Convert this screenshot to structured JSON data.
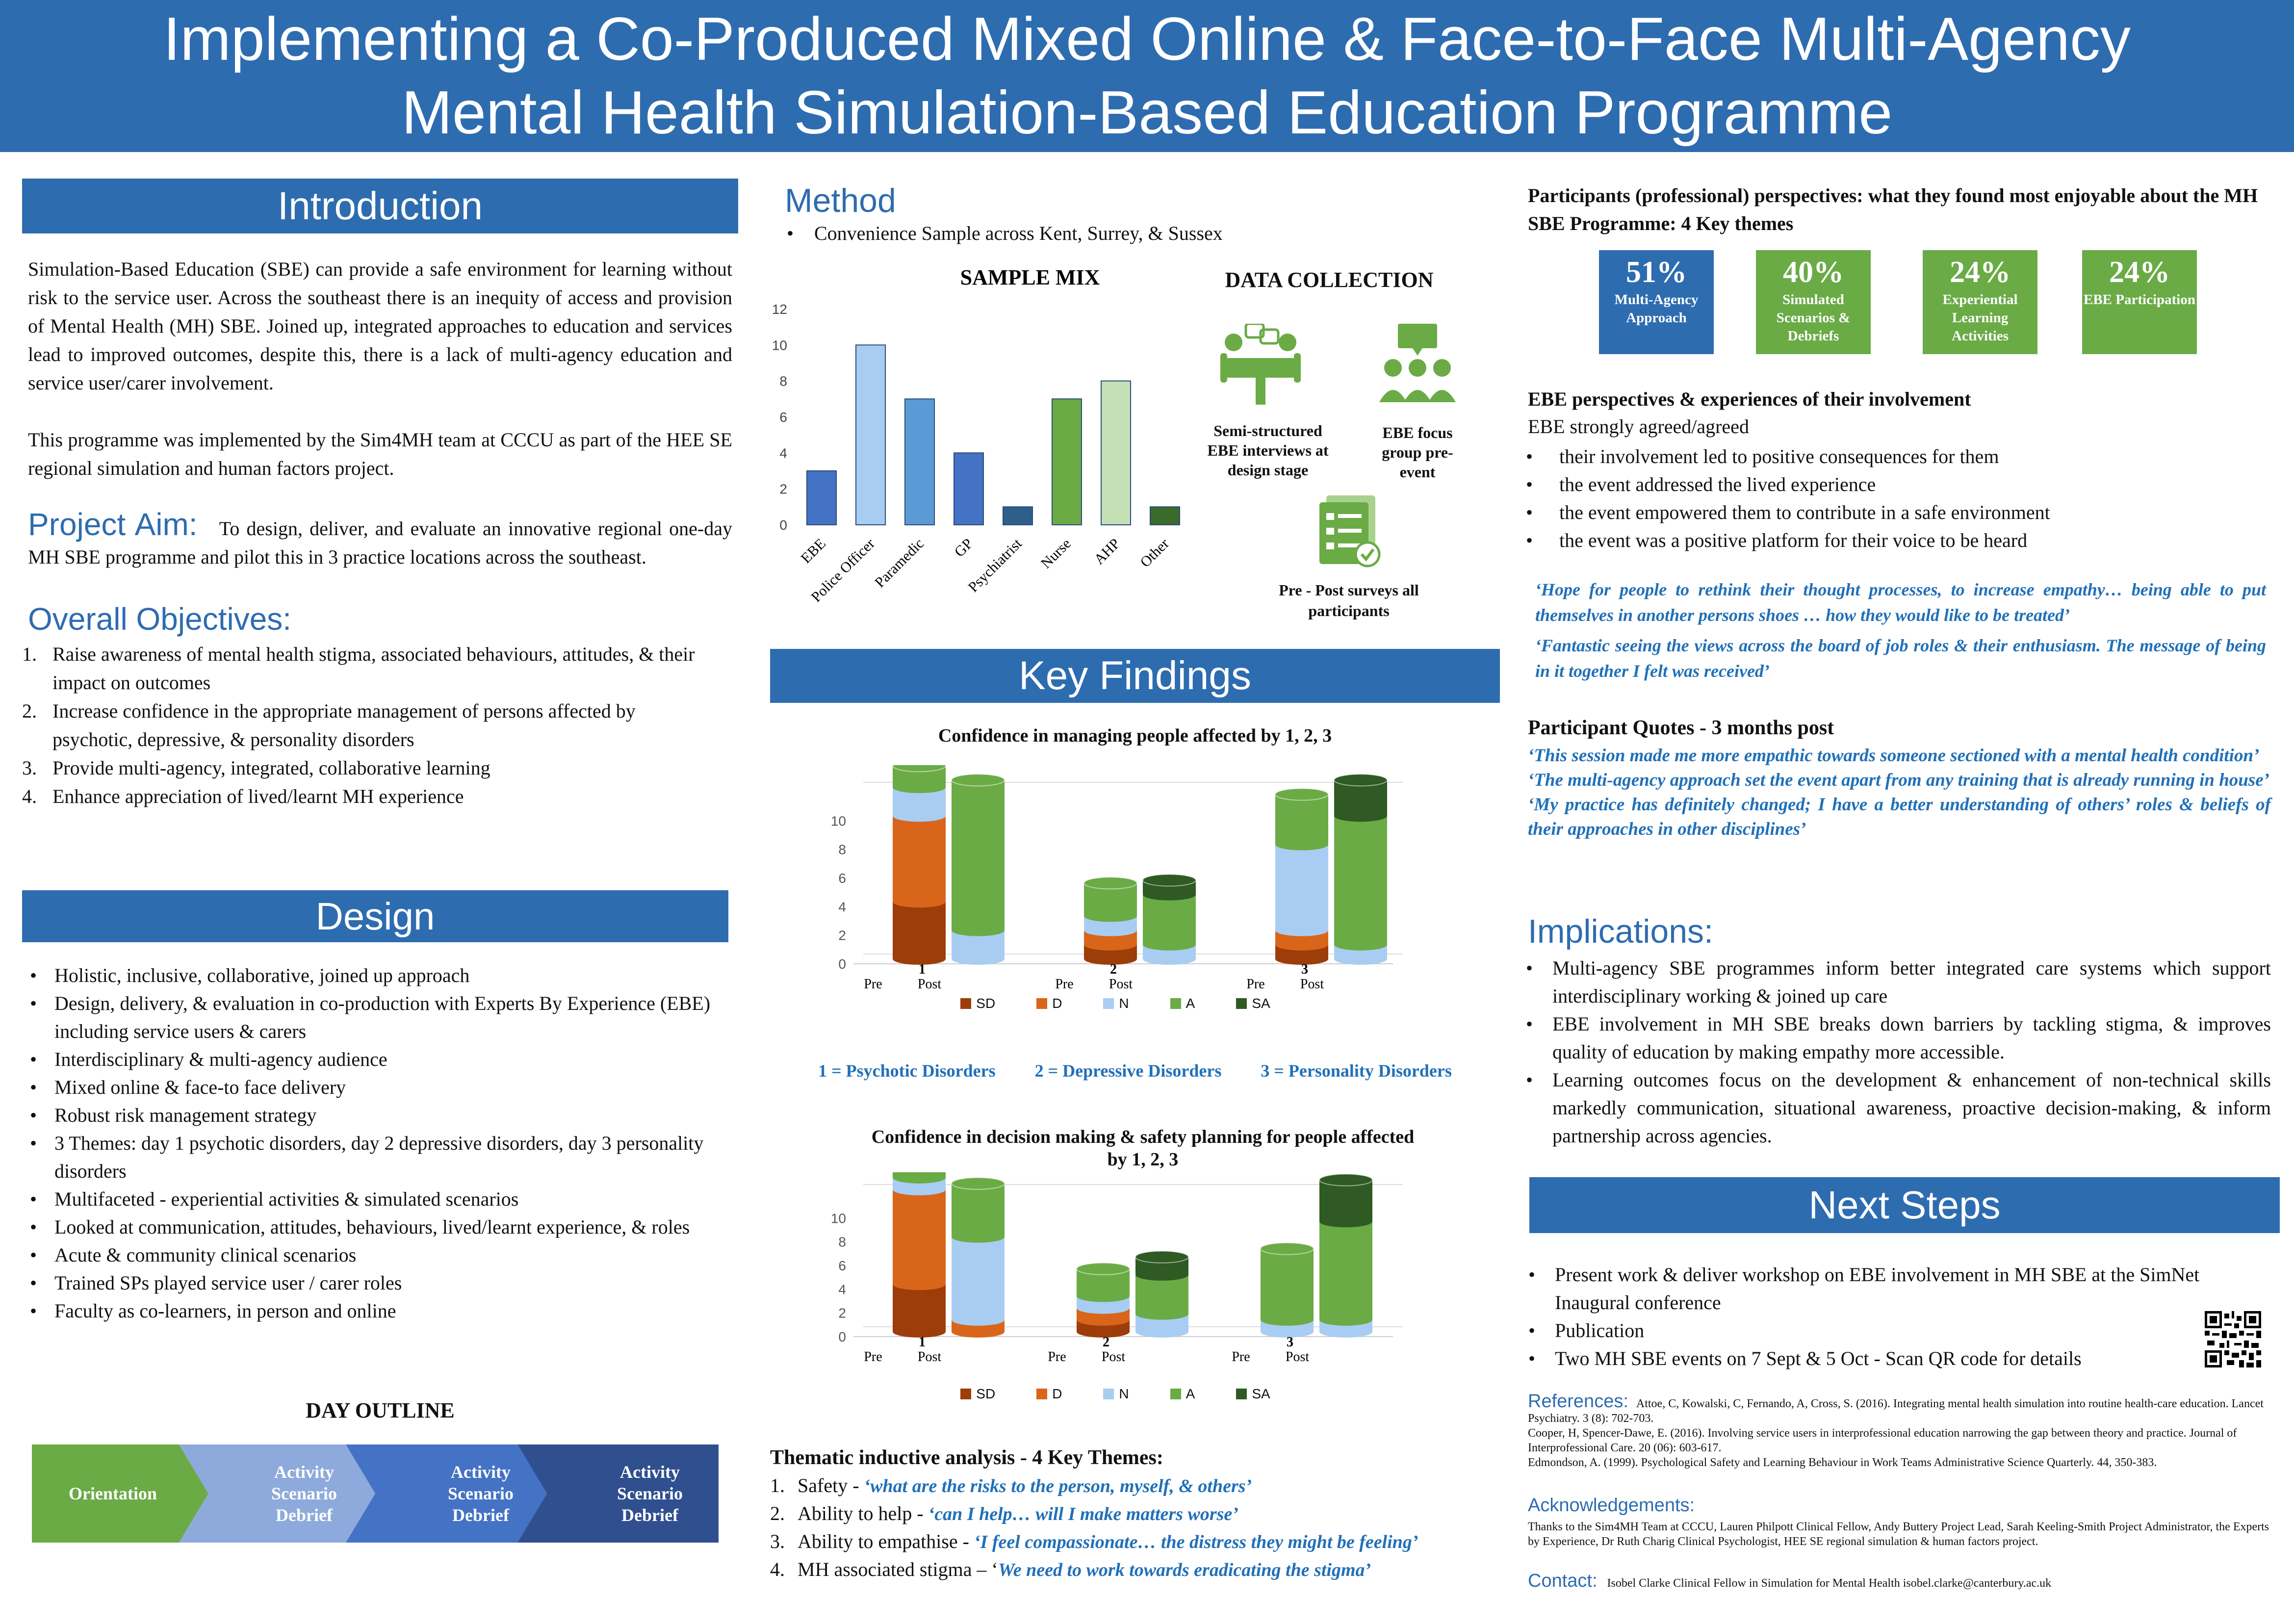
{
  "title": {
    "line1": "Implementing a Co-Produced Mixed Online & Face-to-Face Multi-Agency",
    "line2": "Mental Health Simulation-Based Education Programme"
  },
  "intro": {
    "heading": "Introduction",
    "para1": "Simulation-Based Education (SBE) can provide a safe environment for learning without risk to the service user. Across the southeast there is an inequity of access and provision of Mental Health (MH) SBE. Joined up, integrated approaches to education and services lead to improved outcomes, despite this, there is a lack of multi-agency education and service user/carer involvement.",
    "para2": "This programme was implemented by the Sim4MH team at CCCU as part of the HEE SE regional simulation and human factors project."
  },
  "aim": {
    "heading": "Project Aim:",
    "text": "To design, deliver, and evaluate an innovative regional one-day MH SBE programme and pilot this in 3 practice locations across the southeast."
  },
  "objectives": {
    "heading": "Overall Objectives:",
    "items": [
      {
        "num": "1.",
        "text": "Raise awareness of mental health stigma, associated behaviours, attitudes, & their impact on outcomes"
      },
      {
        "num": "2.",
        "text": "Increase confidence in the appropriate management of persons affected by psychotic, depressive, & personality disorders"
      },
      {
        "num": "3.",
        "text": "Provide multi-agency, integrated, collaborative learning"
      },
      {
        "num": "4.",
        "text": "Enhance appreciation of lived/learnt MH experience"
      }
    ]
  },
  "design": {
    "heading": "Design",
    "items": [
      "Holistic, inclusive, collaborative, joined up approach",
      "Design, delivery, & evaluation in co-production with Experts By Experience (EBE) including service users & carers",
      "Interdisciplinary & multi-agency audience",
      "Mixed online & face-to face delivery",
      "Robust risk management strategy",
      "3 Themes: day 1 psychotic disorders, day 2 depressive disorders, day 3 personality disorders",
      "Multifaceted - experiential activities & simulated scenarios",
      "Looked at communication, attitudes, behaviours, lived/learnt experience, & roles",
      "Acute & community clinical scenarios",
      "Trained SPs played service user / carer roles",
      "Faculty as co-learners, in person and online"
    ],
    "bullet": "•"
  },
  "day_outline": {
    "heading": "DAY OUTLINE",
    "steps": [
      "Orientation",
      "Activity Scenario Debrief",
      "Activity Scenario Debrief",
      "Activity Scenario Debrief"
    ]
  },
  "method": {
    "heading": "Method",
    "bullet": "Convenience Sample across Kent, Surrey, & Sussex",
    "data_collection_heading": "DATA COLLECTION",
    "dc_items": [
      "Semi-structured EBE interviews at design stage",
      "EBE focus group pre-event",
      "Pre - Post surveys all participants"
    ]
  },
  "key_findings": {
    "heading": "Key Findings",
    "chart_key": [
      "1 =  Psychotic Disorders",
      "2 = Depressive Disorders",
      "3 = Personality Disorders"
    ]
  },
  "thematic": {
    "heading": "Thematic inductive analysis - 4 Key Themes:",
    "items": [
      {
        "num": "1.",
        "plain": "Safety - ",
        "quote": "‘what are the risks to the person, myself, & others’"
      },
      {
        "num": "2.",
        "plain": "Ability to help - ",
        "quote": "‘can I help… will I make matters worse’"
      },
      {
        "num": "3.",
        "plain": "Ability to empathise - ",
        "quote": "‘I feel compassionate… the distress they might be feeling’"
      },
      {
        "num": "4.",
        "plain": "MH associated stigma – ‘",
        "quote": "We need to work towards eradicating the stigma’"
      }
    ]
  },
  "perspectives": {
    "heading": "Participants (professional) perspectives:  what they found most enjoyable about the MH SBE Programme: 4 Key themes",
    "stats": [
      {
        "pct": "51%",
        "label": "Multi-Agency Approach",
        "color": "#2e6cb0"
      },
      {
        "pct": "40%",
        "label": "Simulated Scenarios & Debriefs",
        "color": "#6aab46"
      },
      {
        "pct": "24%",
        "label": "Experiential Learning Activities",
        "color": "#6aab46"
      },
      {
        "pct": "24%",
        "label": "EBE Participation",
        "color": "#6aab46"
      }
    ]
  },
  "ebe": {
    "heading": "EBE perspectives & experiences of their involvement",
    "intro": "EBE strongly agreed/agreed",
    "items": [
      "their involvement led to positive consequences for them",
      "the event addressed the lived experience",
      "the event empowered them to contribute in a safe environment",
      "the event was a positive platform for their voice to be heard"
    ],
    "quotes": [
      "‘Hope for people to rethink their thought processes, to increase empathy… being able to put themselves in another persons shoes … how they would like to be treated’",
      "‘Fantastic seeing the views across the board of job roles & their enthusiasm. The message of being in it together I felt was received’"
    ]
  },
  "quotes3m": {
    "heading": "Participant Quotes - 3 months post",
    "items": [
      "‘This session made me more empathic towards someone sectioned with a mental health condition’",
      "‘The multi-agency approach set the event apart from any training that is already running in house’",
      "‘My practice has definitely changed; I have a better understanding of others’ roles & beliefs of their approaches in other disciplines’"
    ]
  },
  "implications": {
    "heading": "Implications:",
    "items": [
      "Multi-agency SBE programmes inform better integrated care systems which support interdisciplinary working & joined up care",
      "EBE involvement in MH SBE breaks down barriers by tackling stigma, & improves quality of education by making empathy more accessible.",
      "Learning outcomes focus on the development & enhancement of non-technical skills markedly communication, situational awareness, proactive decision-making, & inform partnership across agencies."
    ]
  },
  "next_steps": {
    "heading": "Next Steps",
    "items": [
      "Present work & deliver workshop on EBE involvement in MH SBE at the SimNet Inaugural conference",
      "Publication",
      "Two MH SBE events on 7 Sept & 5 Oct - Scan QR code for details"
    ]
  },
  "references": {
    "heading": "References:",
    "first": "Attoe, C, Kowalski, C, Fernando, A, Cross, S. (2016). Integrating mental health simulation into routine health-care education. Lancet Psychiatry. 3 (8): 702-703.",
    "rest": [
      "Cooper, H, Spencer-Dawe, E. (2016). Involving service users in interprofessional education narrowing the gap between theory and practice. Journal of Interprofessional Care. 20 (06): 603-617.",
      "Edmondson, A. (1999). Psychological Safety and Learning Behaviour in Work Teams Administrative Science Quarterly. 44, 350-383."
    ]
  },
  "acknowledgements": {
    "heading": "Acknowledgements:",
    "text": "Thanks to the Sim4MH Team at CCCU, Lauren Philpott Clinical Fellow, Andy Buttery Project Lead, Sarah Keeling-Smith Project Administrator, the Experts by Experience, Dr Ruth Charig Clinical Psychologist, HEE SE regional simulation & human factors project."
  },
  "contact": {
    "heading": "Contact:",
    "text": "Isobel Clarke Clinical Fellow in Simulation for Mental Health  isobel.clarke@canterbury.ac.uk"
  },
  "chart_data": [
    {
      "type": "bar",
      "title": "SAMPLE MIX",
      "categories": [
        "EBE",
        "Police Officer",
        "Paramedic",
        "GP",
        "Psychiatrist",
        "Nurse",
        "AHP",
        "Other"
      ],
      "values": [
        3,
        10,
        7,
        4,
        1,
        7,
        8,
        1
      ],
      "colors": [
        "#4472c4",
        "#a9cdf2",
        "#5b9bd5",
        "#4472c4",
        "#2e5f8a",
        "#6aab46",
        "#c5e0b4",
        "#3a6b2a"
      ],
      "yticks": [
        "0",
        "2",
        "4",
        "6",
        "8",
        "10",
        "12"
      ],
      "ylim": [
        0,
        12
      ]
    },
    {
      "type": "stacked-bar-3d",
      "title": "Confidence in managing people affected by 1, 2, 3",
      "groups": [
        "1",
        "2",
        "3"
      ],
      "bars": [
        "Pre",
        "Post"
      ],
      "series_names": [
        "SD",
        "D",
        "N",
        "A",
        "SA"
      ],
      "series_colors": [
        "#9c3d0a",
        "#d9651a",
        "#a9cdf2",
        "#6aab46",
        "#2f5a23"
      ],
      "stacks": [
        [
          4,
          6,
          2,
          1.5,
          0
        ],
        [
          0,
          0,
          2,
          10.5,
          0
        ],
        [
          1,
          1,
          1,
          2.3,
          0
        ],
        [
          0,
          0,
          1,
          3.5,
          1
        ],
        [
          1,
          1,
          6,
          3.5,
          0
        ],
        [
          0,
          0,
          1,
          9,
          2.5
        ]
      ],
      "yticks": [
        "0",
        "2",
        "4",
        "6",
        "8",
        "10"
      ],
      "ylim": [
        0,
        12
      ]
    },
    {
      "type": "stacked-bar-3d",
      "title": "Confidence in decision making & safety planning for people affected by 1, 2, 3",
      "groups": [
        "1",
        "2",
        "3"
      ],
      "bars": [
        "Pre",
        "Post"
      ],
      "series_names": [
        "SD",
        "D",
        "N",
        "A",
        "SA"
      ],
      "series_colors": [
        "#9c3d0a",
        "#d9651a",
        "#a9cdf2",
        "#6aab46",
        "#2f5a23"
      ],
      "stacks": [
        [
          4,
          8,
          1,
          1.5,
          0
        ],
        [
          0,
          1,
          7,
          4.5,
          0
        ],
        [
          1,
          1,
          1,
          2.3,
          0
        ],
        [
          0,
          0,
          1.5,
          3.3,
          1.5
        ],
        [
          0,
          0,
          1,
          6,
          0
        ],
        [
          0,
          0,
          1,
          8.3,
          3.5
        ]
      ],
      "yticks": [
        "0",
        "2",
        "4",
        "6",
        "8",
        "10"
      ],
      "ylim": [
        0,
        12
      ]
    }
  ]
}
